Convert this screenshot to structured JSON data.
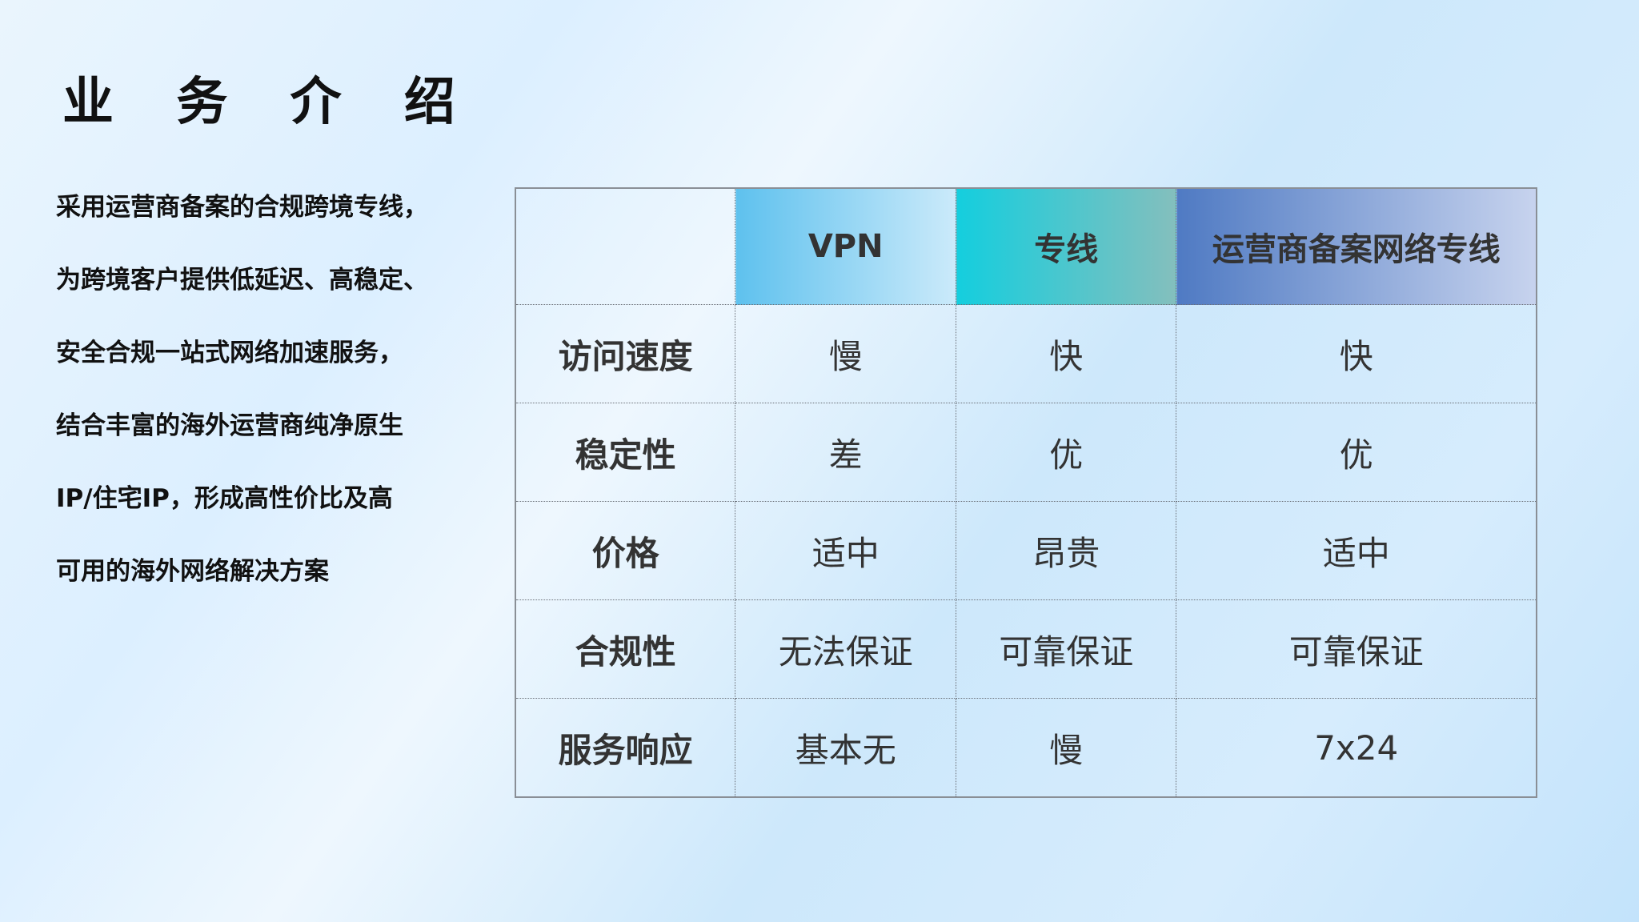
{
  "title": "业 务 介 绍",
  "intro_lines": [
    "采用运营商备案的合规跨境专线，",
    "为跨境客户提供低延迟、高稳定、",
    "安全合规一站式网络加速服务，",
    "结合丰富的海外运营商纯净原生",
    "IP/住宅IP，形成高性价比及高",
    "可用的海外网络解决方案"
  ],
  "table": {
    "headers": [
      "",
      "VPN",
      "专线",
      "运营商备案网络专线"
    ],
    "header_colors": [
      "#5ec1ee",
      "#14cede",
      "#4f7ac3"
    ],
    "rows": [
      [
        "访问速度",
        "慢",
        "快",
        "快"
      ],
      [
        "稳定性",
        "差",
        "优",
        "优"
      ],
      [
        "价格",
        "适中",
        "昂贵",
        "适中"
      ],
      [
        "合规性",
        "无法保证",
        "可靠保证",
        "可靠保证"
      ],
      [
        "服务响应",
        "基本无",
        "慢",
        "7x24"
      ]
    ]
  }
}
